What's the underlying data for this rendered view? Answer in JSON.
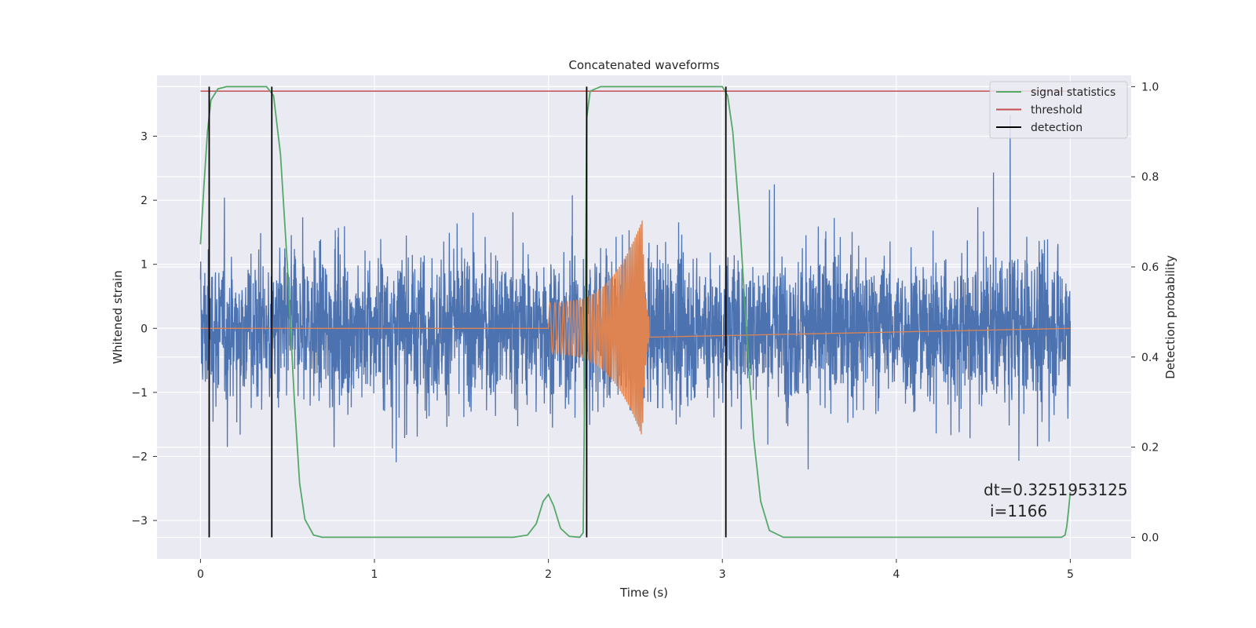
{
  "chart_data": {
    "type": "line",
    "title": "Concatenated waveforms",
    "xlabel": "Time (s)",
    "ylabel": "Whitened strain",
    "ylabel_right": "Detection probability",
    "xlim": [
      -0.25,
      5.35
    ],
    "ylim": [
      -3.6,
      3.95
    ],
    "ylim_right": [
      -0.048,
      1.025
    ],
    "xticks": [
      0,
      1,
      2,
      3,
      4,
      5
    ],
    "yticks": [
      -3,
      -2,
      -1,
      0,
      1,
      2,
      3
    ],
    "yticks_right": [
      0.0,
      0.2,
      0.4,
      0.6,
      0.8,
      1.0
    ],
    "xtick_labels": [
      "0",
      "1",
      "2",
      "3",
      "4",
      "5"
    ],
    "ytick_labels": [
      "−3",
      "−2",
      "−1",
      "0",
      "1",
      "2",
      "3"
    ],
    "ytick_right_labels": [
      "0.0",
      "0.2",
      "0.4",
      "0.6",
      "0.8",
      "1.0"
    ],
    "grid": true,
    "legend_position": "upper-right",
    "legend": [
      {
        "label": "signal statistics",
        "color": "#55a868"
      },
      {
        "label": "threshold",
        "color": "#c44e52"
      },
      {
        "label": "detection",
        "color": "#000000"
      }
    ],
    "strain_noise": {
      "color": "#4c72b0",
      "x_range": [
        0,
        5
      ],
      "amplitude_typical": 1.2,
      "amplitude_peak": 3.6
    },
    "injected_signal": {
      "color": "#dd8452",
      "x_range": [
        2.0,
        2.58
      ],
      "start_amplitude": 0.4,
      "peak_amplitude": 1.7,
      "peak_time": 2.54
    },
    "signal_statistics": {
      "color": "#55a868",
      "axis": "right",
      "points": [
        [
          0.0,
          0.65
        ],
        [
          0.02,
          0.78
        ],
        [
          0.04,
          0.9
        ],
        [
          0.06,
          0.97
        ],
        [
          0.1,
          0.995
        ],
        [
          0.15,
          1.0
        ],
        [
          0.38,
          1.0
        ],
        [
          0.42,
          0.98
        ],
        [
          0.46,
          0.85
        ],
        [
          0.5,
          0.6
        ],
        [
          0.54,
          0.3
        ],
        [
          0.57,
          0.12
        ],
        [
          0.6,
          0.04
        ],
        [
          0.65,
          0.005
        ],
        [
          0.7,
          0.0
        ],
        [
          1.8,
          0.0
        ],
        [
          1.88,
          0.005
        ],
        [
          1.93,
          0.03
        ],
        [
          1.97,
          0.08
        ],
        [
          2.0,
          0.095
        ],
        [
          2.03,
          0.07
        ],
        [
          2.07,
          0.02
        ],
        [
          2.12,
          0.002
        ],
        [
          2.18,
          0.0
        ],
        [
          2.2,
          0.01
        ],
        [
          2.21,
          0.4
        ],
        [
          2.22,
          0.93
        ],
        [
          2.24,
          0.99
        ],
        [
          2.3,
          1.0
        ],
        [
          3.0,
          1.0
        ],
        [
          3.03,
          0.98
        ],
        [
          3.06,
          0.9
        ],
        [
          3.1,
          0.7
        ],
        [
          3.14,
          0.45
        ],
        [
          3.18,
          0.22
        ],
        [
          3.22,
          0.08
        ],
        [
          3.27,
          0.015
        ],
        [
          3.35,
          0.0
        ],
        [
          4.95,
          0.0
        ],
        [
          4.97,
          0.005
        ],
        [
          4.98,
          0.025
        ],
        [
          4.99,
          0.06
        ],
        [
          5.0,
          0.1
        ]
      ]
    },
    "threshold": {
      "color": "#c44e52",
      "axis": "right",
      "value": 0.99,
      "x_range": [
        0,
        5
      ]
    },
    "detections": {
      "color": "#000000",
      "y_range": [
        0,
        1
      ],
      "x": [
        0.05,
        0.41,
        2.22,
        3.02
      ]
    },
    "annotation": [
      "dt=0.3251953125",
      "i=1166"
    ]
  }
}
